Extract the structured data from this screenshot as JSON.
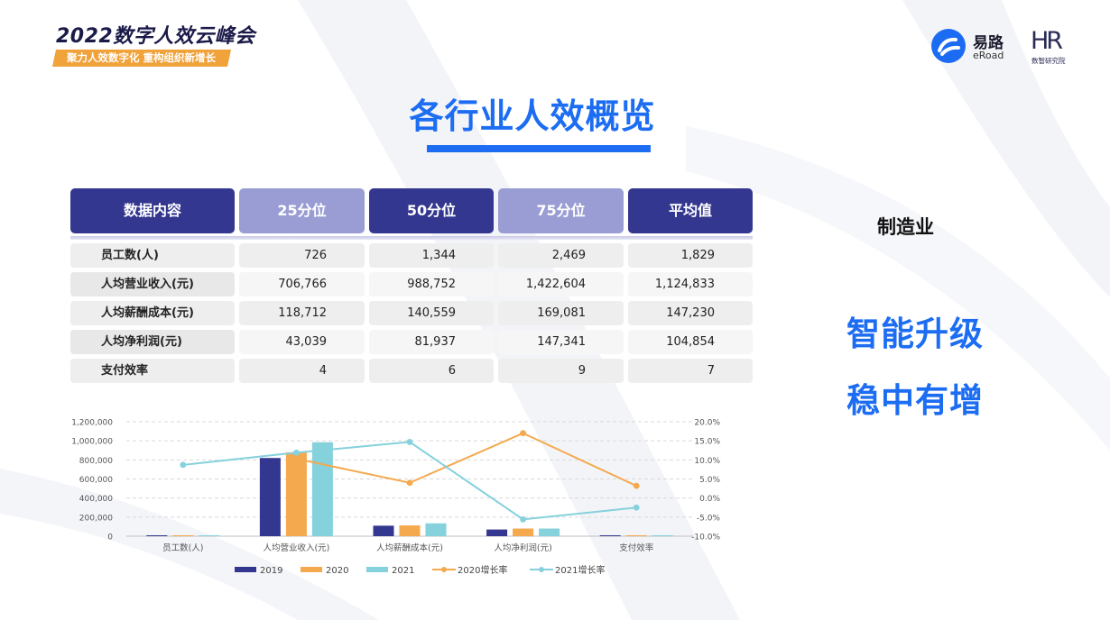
{
  "header": {
    "event_title": "2022数字人效云峰会",
    "event_tagline": "聚力人效数字化  重构组织新增长",
    "logo_eroad_cn": "易路",
    "logo_eroad_en": "eRoad",
    "logo_hr": "HR",
    "logo_hr_sub": "数智研究院"
  },
  "page_title": "各行业人效概览",
  "industry": "制造业",
  "slogans": [
    "智能升级",
    "稳中有增"
  ],
  "table": {
    "headers": [
      "数据内容",
      "25分位",
      "50分位",
      "75分位",
      "平均值"
    ],
    "rows": [
      {
        "label": "员工数(人)",
        "values": [
          "726",
          "1,344",
          "2,469",
          "1,829"
        ]
      },
      {
        "label": "人均营业收入(元)",
        "values": [
          "706,766",
          "988,752",
          "1,422,604",
          "1,124,833"
        ]
      },
      {
        "label": "人均薪酬成本(元)",
        "values": [
          "118,712",
          "140,559",
          "169,081",
          "147,230"
        ]
      },
      {
        "label": "人均净利润(元)",
        "values": [
          "43,039",
          "81,937",
          "147,341",
          "104,854"
        ]
      },
      {
        "label": "支付效率",
        "values": [
          "4",
          "6",
          "9",
          "7"
        ]
      }
    ]
  },
  "chart_data": {
    "type": "bar",
    "categories": [
      "员工数(人)",
      "人均营业收入(元)",
      "人均薪酬成本(元)",
      "人均净利润(元)",
      "支付效率"
    ],
    "series": [
      {
        "name": "2019",
        "type": "bar",
        "axis": "left",
        "color": "#34378f",
        "values": [
          1800,
          820000,
          110000,
          70000,
          7
        ]
      },
      {
        "name": "2020",
        "type": "bar",
        "axis": "left",
        "color": "#f4a94e",
        "values": [
          1900,
          880000,
          113000,
          80000,
          7
        ]
      },
      {
        "name": "2021",
        "type": "bar",
        "axis": "left",
        "color": "#85d1dc",
        "values": [
          1950,
          985000,
          135000,
          80000,
          7
        ]
      },
      {
        "name": "2020增长率",
        "type": "line",
        "axis": "right",
        "color": "#f4a94e",
        "values": [
          null,
          10.3,
          4.0,
          17.0,
          3.2
        ]
      },
      {
        "name": "2021增长率",
        "type": "line",
        "axis": "right",
        "color": "#85d1dc",
        "values": [
          8.7,
          11.9,
          14.7,
          -5.6,
          -2.5
        ]
      }
    ],
    "y_left": {
      "min": 0,
      "max": 1200000,
      "ticks": [
        "0",
        "200,000",
        "400,000",
        "600,000",
        "800,000",
        "1,000,000",
        "1,200,000"
      ]
    },
    "y_right": {
      "min": -10,
      "max": 20,
      "ticks": [
        "-10.0%",
        "-5.0%",
        "0.0%",
        "5.0%",
        "10.0%",
        "15.0%",
        "20.0%"
      ]
    },
    "grid": true,
    "legend_position": "bottom"
  },
  "colors": {
    "accent": "#1c6df2",
    "table_header_dark": "#34378f",
    "table_header_light": "#9a9dd4",
    "tag": "#f0a23b"
  }
}
